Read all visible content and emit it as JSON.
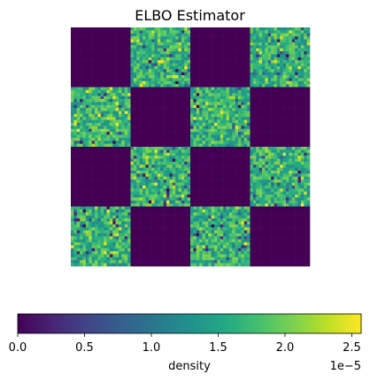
{
  "chart_data": {
    "type": "heatmap",
    "title": "ELBO Estimator",
    "grid_blocks": 4,
    "block_pattern": [
      [
        0,
        1,
        0,
        1
      ],
      [
        1,
        0,
        1,
        0
      ],
      [
        0,
        1,
        0,
        1
      ],
      [
        1,
        0,
        1,
        0
      ]
    ],
    "cells_per_block": 20,
    "inactive_value": 0.0,
    "active_value_range": [
      0.0,
      2.57e-05
    ],
    "active_value_typical": [
      1.2e-05,
      2.1e-05
    ],
    "colorbar": {
      "label": "density",
      "orientation": "horizontal",
      "placement": "bottom",
      "range": [
        0.0,
        2.57e-05
      ],
      "tick_values": [
        0.0,
        0.5,
        1.0,
        1.5,
        2.0,
        2.5
      ],
      "tick_labels": [
        "0.0",
        "0.5",
        "1.0",
        "1.5",
        "2.0",
        "2.5"
      ],
      "offset_text": "1e−5",
      "colormap": "viridis"
    },
    "axes_visible": false,
    "grid": false,
    "colors": {
      "zero": "#440154",
      "max": "#fde725"
    }
  }
}
